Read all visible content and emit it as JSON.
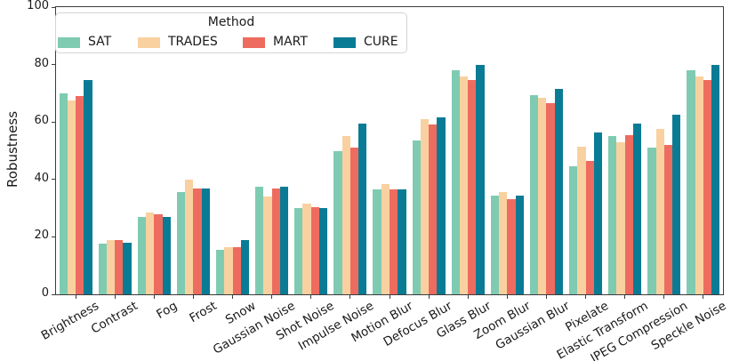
{
  "chart_data": {
    "type": "bar",
    "title": "",
    "xlabel": "",
    "ylabel": "Robustness",
    "ylim": [
      0,
      100
    ],
    "yticks": [
      0,
      20,
      40,
      60,
      80,
      100
    ],
    "grid": false,
    "legend_title": "Method",
    "legend_position": "upper-left",
    "x_tick_rotation": 30,
    "categories": [
      "Brightness",
      "Contrast",
      "Fog",
      "Frost",
      "Snow",
      "Gaussian Noise",
      "Shot Noise",
      "Impulse Noise",
      "Motion Blur",
      "Defocus Blur",
      "Glass Blur",
      "Zoom Blur",
      "Gaussian Blur",
      "Pixelate",
      "Elastic Transform",
      "JPEG Compression",
      "Speckle Noise"
    ],
    "series": [
      {
        "name": "SAT",
        "color": "#7fcbb1",
        "values": [
          70.0,
          17.5,
          27.0,
          35.5,
          15.5,
          37.5,
          30.0,
          50.0,
          36.5,
          53.5,
          78.0,
          34.5,
          69.5,
          44.5,
          55.0,
          51.0,
          78.0
        ]
      },
      {
        "name": "TRADES",
        "color": "#f9d1a0",
        "values": [
          67.5,
          19.0,
          28.5,
          40.0,
          16.5,
          34.0,
          31.5,
          55.0,
          38.5,
          61.0,
          76.0,
          35.5,
          68.5,
          51.5,
          53.0,
          57.5,
          76.0
        ]
      },
      {
        "name": "MART",
        "color": "#ed6c5f",
        "values": [
          69.0,
          19.0,
          28.0,
          37.0,
          16.5,
          37.0,
          30.5,
          51.0,
          36.5,
          59.0,
          74.5,
          33.0,
          66.5,
          46.5,
          55.5,
          52.0,
          74.5
        ]
      },
      {
        "name": "CURE",
        "color": "#0a7b95",
        "values": [
          74.5,
          18.0,
          27.0,
          37.0,
          19.0,
          37.5,
          30.0,
          59.5,
          36.5,
          61.5,
          80.0,
          34.5,
          71.5,
          56.5,
          59.5,
          62.5,
          80.0
        ]
      }
    ]
  }
}
